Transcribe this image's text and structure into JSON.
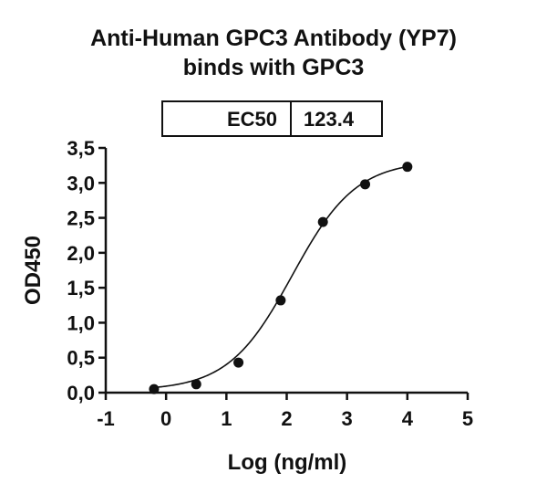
{
  "chart_data": {
    "type": "scatter",
    "title_line1": "Anti-Human GPC3 Antibody (YP7)",
    "title_line2": "binds with GPC3",
    "xlabel": "Log (ng/ml)",
    "ylabel": "OD450",
    "xlim": [
      -1,
      5
    ],
    "ylim": [
      0,
      3.5
    ],
    "x_ticks": [
      "-1",
      "0",
      "1",
      "2",
      "3",
      "4",
      "5"
    ],
    "y_ticks": [
      "0,0",
      "0,5",
      "1,0",
      "1,5",
      "2,0",
      "2,5",
      "3,0",
      "3,5"
    ],
    "ec50_table": {
      "label": "EC50",
      "value": "123.4"
    },
    "series": [
      {
        "x": [
          -0.2,
          0.5,
          1.2,
          1.9,
          2.6,
          3.3,
          4.0
        ],
        "y": [
          0.05,
          0.12,
          0.43,
          1.32,
          2.44,
          2.98,
          3.23
        ]
      }
    ],
    "fit": {
      "model": "4PL",
      "bottom": 0.03,
      "top": 3.32,
      "logEC50": 2.09,
      "hill": 0.82
    }
  }
}
